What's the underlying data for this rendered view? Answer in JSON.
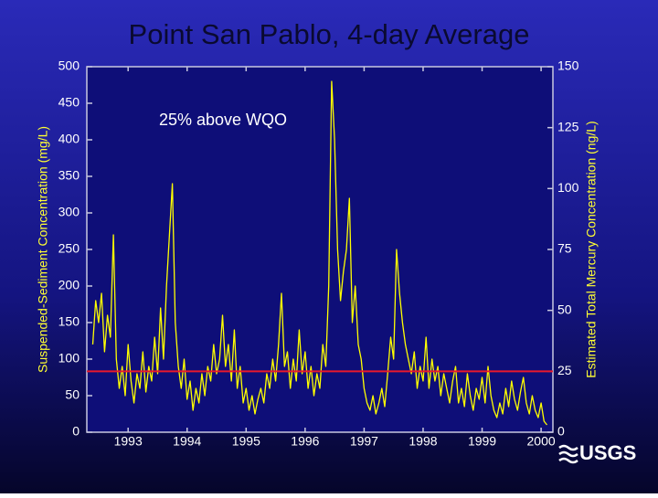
{
  "chart_data": {
    "type": "line",
    "title": "Point San Pablo, 4-day Average",
    "y_label": "Suspended-Sediment Concentration (mg/L)",
    "y2_label": "Estimated Total Mercury Concentration (ng/L)",
    "annotation": "25% above WQO",
    "logo_text": "USGS",
    "xlim": [
      1992.8,
      2000.7
    ],
    "xticks": [
      {
        "value": 1993.5,
        "label": "1993"
      },
      {
        "value": 1994.5,
        "label": "1994"
      },
      {
        "value": 1995.5,
        "label": "1995"
      },
      {
        "value": 1996.5,
        "label": "1996"
      },
      {
        "value": 1997.5,
        "label": "1997"
      },
      {
        "value": 1998.5,
        "label": "1998"
      },
      {
        "value": 1999.5,
        "label": "1999"
      },
      {
        "value": 2000.5,
        "label": "2000"
      }
    ],
    "ylim": [
      0,
      500
    ],
    "yticks": [
      0,
      50,
      100,
      150,
      200,
      250,
      300,
      350,
      400,
      450,
      500
    ],
    "y2lim": [
      0,
      150
    ],
    "y2ticks": [
      0,
      25,
      50,
      75,
      100,
      125,
      150
    ],
    "reference_line": {
      "value": 25,
      "axis": "y2",
      "color": "#e8192c"
    },
    "x": [
      1992.9,
      1992.95,
      1993.0,
      1993.05,
      1993.1,
      1993.15,
      1993.2,
      1993.25,
      1993.3,
      1993.35,
      1993.4,
      1993.45,
      1993.5,
      1993.55,
      1993.6,
      1993.65,
      1993.7,
      1993.75,
      1993.8,
      1993.85,
      1993.9,
      1993.95,
      1994.0,
      1994.05,
      1994.1,
      1994.15,
      1994.2,
      1994.25,
      1994.3,
      1994.35,
      1994.4,
      1994.45,
      1994.5,
      1994.55,
      1994.6,
      1994.65,
      1994.7,
      1994.75,
      1994.8,
      1994.85,
      1994.9,
      1994.95,
      1995.0,
      1995.05,
      1995.1,
      1995.15,
      1995.2,
      1995.25,
      1995.3,
      1995.35,
      1995.4,
      1995.45,
      1995.5,
      1995.55,
      1995.6,
      1995.65,
      1995.7,
      1995.75,
      1995.8,
      1995.85,
      1995.9,
      1995.95,
      1996.0,
      1996.05,
      1996.1,
      1996.15,
      1996.2,
      1996.25,
      1996.3,
      1996.35,
      1996.4,
      1996.45,
      1996.5,
      1996.55,
      1996.6,
      1996.65,
      1996.7,
      1996.75,
      1996.8,
      1996.85,
      1996.9,
      1996.95,
      1997.0,
      1997.05,
      1997.1,
      1997.15,
      1997.2,
      1997.25,
      1997.3,
      1997.35,
      1997.4,
      1997.45,
      1997.5,
      1997.55,
      1997.6,
      1997.65,
      1997.7,
      1997.75,
      1997.8,
      1997.85,
      1997.9,
      1997.95,
      1998.0,
      1998.05,
      1998.1,
      1998.15,
      1998.2,
      1998.25,
      1998.3,
      1998.35,
      1998.4,
      1998.45,
      1998.5,
      1998.55,
      1998.6,
      1998.65,
      1998.7,
      1998.75,
      1998.8,
      1998.85,
      1998.9,
      1998.95,
      1999.0,
      1999.05,
      1999.1,
      1999.15,
      1999.2,
      1999.25,
      1999.3,
      1999.35,
      1999.4,
      1999.45,
      1999.5,
      1999.55,
      1999.6,
      1999.65,
      1999.7,
      1999.75,
      1999.8,
      1999.85,
      1999.9,
      1999.95,
      2000.0,
      2000.05,
      2000.1,
      2000.15,
      2000.2,
      2000.25,
      2000.3,
      2000.35,
      2000.4,
      2000.45,
      2000.5,
      2000.55,
      2000.6
    ],
    "series": [
      {
        "color": "#ffff00",
        "values": [
          120,
          180,
          150,
          190,
          110,
          160,
          130,
          270,
          100,
          60,
          90,
          50,
          120,
          70,
          40,
          80,
          60,
          110,
          55,
          90,
          70,
          130,
          80,
          170,
          100,
          200,
          270,
          340,
          150,
          90,
          60,
          100,
          45,
          70,
          30,
          60,
          40,
          80,
          50,
          90,
          70,
          120,
          80,
          100,
          160,
          90,
          120,
          70,
          140,
          60,
          90,
          40,
          60,
          30,
          50,
          25,
          45,
          60,
          40,
          80,
          60,
          100,
          70,
          120,
          190,
          90,
          110,
          60,
          100,
          70,
          140,
          80,
          110,
          60,
          90,
          50,
          80,
          60,
          120,
          90,
          200,
          480,
          400,
          250,
          180,
          220,
          250,
          320,
          150,
          200,
          120,
          100,
          60,
          40,
          30,
          50,
          25,
          40,
          60,
          35,
          80,
          130,
          100,
          250,
          190,
          150,
          120,
          100,
          80,
          110,
          60,
          90,
          70,
          130,
          60,
          100,
          70,
          90,
          50,
          80,
          60,
          40,
          70,
          90,
          40,
          60,
          35,
          80,
          50,
          30,
          60,
          45,
          75,
          40,
          90,
          50,
          30,
          20,
          40,
          25,
          60,
          35,
          70,
          45,
          30,
          55,
          75,
          40,
          25,
          50,
          30,
          20,
          40,
          15,
          10
        ]
      }
    ]
  }
}
